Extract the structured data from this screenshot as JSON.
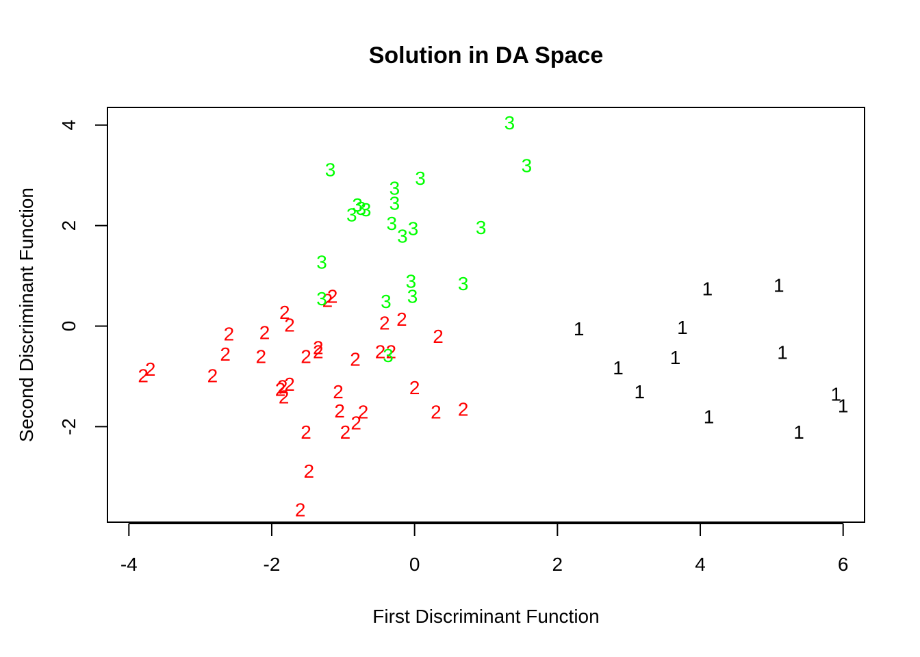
{
  "chart_data": {
    "type": "scatter",
    "title": "Solution in DA Space",
    "xlabel": "First Discriminant Function",
    "ylabel": "Second Discriminant Function",
    "xlim": [
      -4.3,
      6.3
    ],
    "ylim": [
      -3.9,
      4.35
    ],
    "x_ticks": [
      -4,
      -2,
      0,
      2,
      4,
      6
    ],
    "y_ticks": [
      4,
      2,
      0,
      -2
    ],
    "grid": false,
    "colors": {
      "1": "#000000",
      "2": "#ff0000",
      "3": "#00ff00"
    },
    "series": [
      {
        "marker": "1",
        "points": [
          [
            4.1,
            0.75
          ],
          [
            5.1,
            0.82
          ],
          [
            2.3,
            -0.05
          ],
          [
            3.75,
            -0.02
          ],
          [
            5.15,
            -0.52
          ],
          [
            2.85,
            -0.82
          ],
          [
            3.65,
            -0.62
          ],
          [
            3.15,
            -1.3
          ],
          [
            5.9,
            -1.35
          ],
          [
            6.0,
            -1.58
          ],
          [
            4.12,
            -1.8
          ],
          [
            5.38,
            -2.1
          ]
        ]
      },
      {
        "marker": "2",
        "points": [
          [
            -1.82,
            0.28
          ],
          [
            -1.75,
            0.03
          ],
          [
            -1.15,
            0.6
          ],
          [
            -1.22,
            0.52
          ],
          [
            -2.6,
            -0.15
          ],
          [
            -2.1,
            -0.12
          ],
          [
            -0.42,
            0.07
          ],
          [
            -0.18,
            0.14
          ],
          [
            -2.65,
            -0.55
          ],
          [
            -2.15,
            -0.6
          ],
          [
            -1.52,
            -0.6
          ],
          [
            -1.35,
            -0.42
          ],
          [
            -1.35,
            -0.5
          ],
          [
            -0.83,
            -0.65
          ],
          [
            -0.48,
            -0.5
          ],
          [
            -0.33,
            -0.5
          ],
          [
            0.33,
            -0.2
          ],
          [
            -3.7,
            -0.85
          ],
          [
            -3.8,
            -0.98
          ],
          [
            -2.83,
            -0.98
          ],
          [
            -1.85,
            -1.2
          ],
          [
            -1.75,
            -1.15
          ],
          [
            -1.88,
            -1.25
          ],
          [
            -1.83,
            -1.4
          ],
          [
            -1.07,
            -1.3
          ],
          [
            0.0,
            -1.22
          ],
          [
            -1.05,
            -1.68
          ],
          [
            -0.72,
            -1.7
          ],
          [
            -0.82,
            -1.92
          ],
          [
            -0.97,
            -2.1
          ],
          [
            -1.52,
            -2.1
          ],
          [
            0.3,
            -1.7
          ],
          [
            0.68,
            -1.65
          ],
          [
            -1.48,
            -2.88
          ],
          [
            -1.6,
            -3.65
          ]
        ]
      },
      {
        "marker": "3",
        "points": [
          [
            1.33,
            4.05
          ],
          [
            1.57,
            3.2
          ],
          [
            -1.18,
            3.12
          ],
          [
            0.08,
            2.95
          ],
          [
            -0.28,
            2.75
          ],
          [
            -0.28,
            2.45
          ],
          [
            -0.8,
            2.42
          ],
          [
            -0.75,
            2.35
          ],
          [
            -0.68,
            2.32
          ],
          [
            -0.88,
            2.22
          ],
          [
            -0.32,
            2.05
          ],
          [
            -0.02,
            1.95
          ],
          [
            -0.17,
            1.8
          ],
          [
            0.93,
            1.97
          ],
          [
            -1.3,
            1.28
          ],
          [
            -0.05,
            0.9
          ],
          [
            0.68,
            0.85
          ],
          [
            -0.03,
            0.6
          ],
          [
            -1.3,
            0.55
          ],
          [
            -0.4,
            0.5
          ],
          [
            -0.37,
            -0.58
          ]
        ]
      }
    ]
  }
}
